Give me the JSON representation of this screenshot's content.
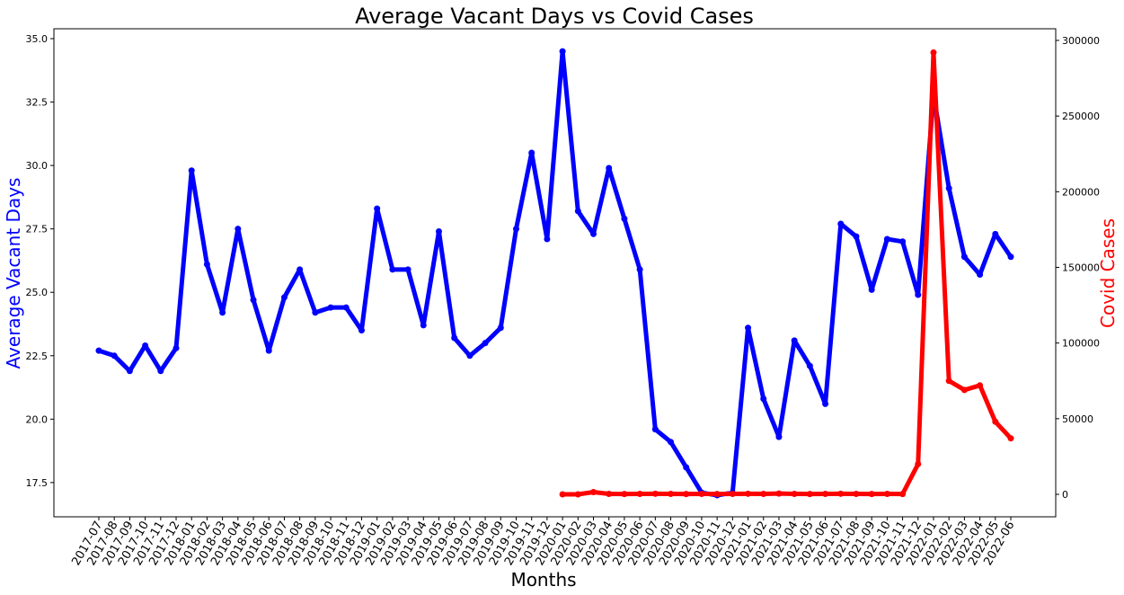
{
  "chart_data": {
    "type": "line",
    "title": "Average Vacant Days vs Covid Cases",
    "x_label": "Months",
    "y_label": "Average Vacant Days",
    "y2_label": "Covid Cases",
    "categories": [
      "2017-07",
      "2017-08",
      "2017-09",
      "2017-10",
      "2017-11",
      "2017-12",
      "2018-01",
      "2018-02",
      "2018-03",
      "2018-04",
      "2018-05",
      "2018-06",
      "2018-07",
      "2018-08",
      "2018-09",
      "2018-10",
      "2018-11",
      "2018-12",
      "2019-01",
      "2019-02",
      "2019-03",
      "2019-04",
      "2019-05",
      "2019-06",
      "2019-07",
      "2019-08",
      "2019-09",
      "2019-10",
      "2019-11",
      "2019-12",
      "2020-01",
      "2020-02",
      "2020-03",
      "2020-04",
      "2020-05",
      "2020-06",
      "2020-07",
      "2020-08",
      "2020-09",
      "2020-10",
      "2020-11",
      "2020-12",
      "2021-01",
      "2021-02",
      "2021-03",
      "2021-04",
      "2021-05",
      "2021-06",
      "2021-07",
      "2021-08",
      "2021-09",
      "2021-10",
      "2021-11",
      "2021-12",
      "2022-01",
      "2022-02",
      "2022-03",
      "2022-04",
      "2022-05",
      "2022-06"
    ],
    "series": [
      {
        "name": "Average Vacant Days",
        "color": "#0000ff",
        "axis": "y",
        "values": [
          22.7,
          22.5,
          21.9,
          22.9,
          21.9,
          22.8,
          29.8,
          26.1,
          24.2,
          27.5,
          24.7,
          22.7,
          24.8,
          25.9,
          24.2,
          24.4,
          24.4,
          23.5,
          28.3,
          25.9,
          25.9,
          23.7,
          27.4,
          23.2,
          22.5,
          23.0,
          23.6,
          27.5,
          30.5,
          27.1,
          34.5,
          28.2,
          27.3,
          29.9,
          27.9,
          25.9,
          19.6,
          19.1,
          18.1,
          17.1,
          17.0,
          17.1,
          23.6,
          20.8,
          19.3,
          23.1,
          22.1,
          20.6,
          27.7,
          27.2,
          25.1,
          27.1,
          27.0,
          24.9,
          32.8,
          29.1,
          26.4,
          25.7,
          27.3,
          26.4
        ]
      },
      {
        "name": "Covid Cases",
        "color": "#ff0000",
        "axis": "y2",
        "values": [
          null,
          null,
          null,
          null,
          null,
          null,
          null,
          null,
          null,
          null,
          null,
          null,
          null,
          null,
          null,
          null,
          null,
          null,
          null,
          null,
          null,
          null,
          null,
          null,
          null,
          null,
          null,
          null,
          null,
          null,
          0,
          0,
          1500,
          300,
          200,
          300,
          400,
          300,
          200,
          300,
          200,
          300,
          400,
          300,
          500,
          300,
          200,
          300,
          400,
          300,
          200,
          300,
          200,
          20000,
          292000,
          75000,
          69000,
          72000,
          48000,
          37000
        ]
      }
    ],
    "ylim": [
      16.15,
      35.39
    ],
    "yticks": [
      17.5,
      {
        "value": 20,
        "label": "20.0"
      },
      22.5,
      {
        "value": 25,
        "label": "25.0"
      },
      27.5,
      {
        "value": 30,
        "label": "30.0"
      },
      32.5,
      {
        "value": 35,
        "label": "35.0"
      }
    ],
    "y2lim": [
      -14850,
      307700
    ],
    "y2ticks": [
      0,
      50000,
      100000,
      150000,
      200000,
      250000,
      300000
    ]
  }
}
